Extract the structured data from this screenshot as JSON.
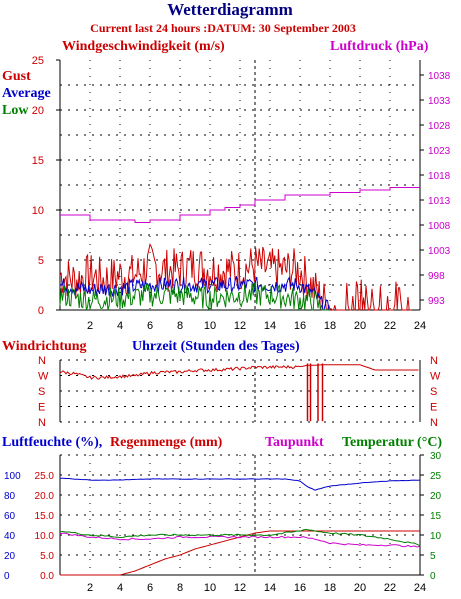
{
  "title": "Wetterdiagramm",
  "subtitle": "Current last 24 hours :DATUM: 30 September 2003",
  "labels": {
    "wind_speed": "Windgeschwindigkeit (m/s)",
    "pressure": "Luftdruck (hPa)",
    "gust": "Gust",
    "average": "Average",
    "low": "Low",
    "wind_direction": "Windrichtung",
    "hour_axis": "Uhrzeit (Stunden des Tages)",
    "humidity": "Luftfeuchte (%),",
    "rain": "Regenmenge (mm)",
    "dewpoint": "Taupunkt",
    "temperature": "Temperatur (°C)"
  },
  "colors": {
    "title": "#000080",
    "red": "#cc0000",
    "blue": "#0000cc",
    "green": "#008000",
    "magenta": "#cc00cc",
    "grid": "#000000"
  },
  "chart_data": [
    {
      "type": "line",
      "name": "wind",
      "xlabel": "Uhrzeit (Stunden des Tages)",
      "ylabel": "Windgeschwindigkeit (m/s)",
      "y2label": "Luftdruck (hPa)",
      "xlim": [
        0,
        24
      ],
      "ylim": [
        0,
        25
      ],
      "y2lim": [
        991,
        1041
      ],
      "xticks": [
        2,
        4,
        6,
        8,
        10,
        12,
        14,
        16,
        18,
        20,
        22,
        24
      ],
      "yticks": [
        0,
        5,
        10,
        15,
        20,
        25
      ],
      "y2ticks": [
        993,
        998,
        1003,
        1008,
        1013,
        1018,
        1023,
        1028,
        1033,
        1038
      ],
      "grid": true,
      "marker_hour": 13,
      "series": [
        {
          "name": "Gust",
          "color": "#cc0000",
          "x": [
            0,
            1,
            2,
            3,
            4,
            5,
            6,
            7,
            8,
            9,
            10,
            11,
            12,
            13,
            14,
            15,
            16,
            17,
            17.5,
            18,
            19,
            20,
            21,
            22,
            23
          ],
          "y": [
            3.5,
            3,
            3.5,
            3,
            3.5,
            3.5,
            4.5,
            4,
            4,
            4.5,
            4,
            4,
            4,
            4.5,
            4,
            4,
            4,
            2,
            1,
            0.5,
            1,
            1,
            1,
            1,
            0.5
          ]
        },
        {
          "name": "Average",
          "color": "#0000cc",
          "x": [
            0,
            2,
            4,
            6,
            8,
            10,
            12,
            14,
            16,
            17,
            17.5,
            18,
            24
          ],
          "y": [
            2.5,
            2,
            2.2,
            2.5,
            2.5,
            2.5,
            2.5,
            2.5,
            2.5,
            1.5,
            0.5,
            0,
            0
          ]
        },
        {
          "name": "Low",
          "color": "#008000",
          "x": [
            0,
            2,
            4,
            6,
            8,
            10,
            12,
            14,
            16,
            17,
            17.5,
            18,
            24
          ],
          "y": [
            1.5,
            1,
            1.2,
            1.5,
            1.5,
            1.2,
            1.5,
            1.5,
            1,
            0.8,
            0,
            0,
            0
          ]
        },
        {
          "name": "Luftdruck (hPa)",
          "color": "#cc00cc",
          "axis": "y2",
          "x": [
            0,
            1.5,
            2,
            4,
            5,
            6,
            8,
            10,
            11,
            12,
            13,
            14,
            15,
            16,
            18,
            20,
            22,
            24
          ],
          "y": [
            1010,
            1010,
            1009,
            1009,
            1008.5,
            1009,
            1010,
            1011,
            1011.5,
            1012,
            1013,
            1013,
            1014,
            1014,
            1014.5,
            1015,
            1015.5,
            1015.5
          ]
        }
      ]
    },
    {
      "type": "line",
      "name": "wind_direction",
      "ylabel": "Windrichtung",
      "xlim": [
        0,
        24
      ],
      "ycategories": [
        "N",
        "W",
        "S",
        "E",
        "N"
      ],
      "series": [
        {
          "name": "Windrichtung",
          "color": "#cc0000",
          "x": [
            0,
            1,
            2,
            3,
            4,
            5,
            6,
            7,
            8,
            9,
            10,
            11,
            12,
            13,
            14,
            15,
            16,
            16.5,
            17,
            17.5,
            18,
            20,
            21,
            22,
            24
          ],
          "y": [
            292,
            280,
            258,
            258,
            265,
            268,
            285,
            290,
            290,
            300,
            302,
            305,
            310,
            318,
            318,
            320,
            320,
            330,
            330,
            332,
            332,
            332,
            302,
            302,
            302
          ]
        }
      ]
    },
    {
      "type": "line",
      "name": "humidity_rain_temp",
      "y1label": "Luftfeuchte (%)",
      "y1ticks": [
        0,
        20,
        40,
        60,
        80,
        100
      ],
      "rainticks": [
        "0.0",
        "5.0",
        "10.0",
        "15.0",
        "20.0",
        "25.0"
      ],
      "y2label": "Temperatur (°C)",
      "y2ticks": [
        0,
        5,
        10,
        15,
        20,
        25,
        30
      ],
      "xlim": [
        0,
        24
      ],
      "xticks": [
        2,
        4,
        6,
        8,
        10,
        12,
        14,
        16,
        18,
        20,
        22,
        24
      ],
      "marker_hour": 13,
      "series": [
        {
          "name": "Luftfeuchte (%)",
          "color": "#0000cc",
          "x": [
            0,
            2,
            4,
            6,
            8,
            10,
            12,
            14,
            15,
            16,
            16.5,
            17,
            18,
            20,
            22,
            24
          ],
          "y": [
            97,
            95,
            95,
            96,
            96,
            96,
            96,
            96,
            96,
            94,
            88,
            85,
            89,
            92,
            94,
            95
          ]
        },
        {
          "name": "Regenmenge (mm)",
          "color": "#cc0000",
          "x": [
            0,
            4,
            4.5,
            5,
            6,
            7,
            8,
            9,
            10,
            11,
            12,
            13,
            14,
            16,
            20,
            24
          ],
          "y": [
            0,
            0,
            0.5,
            1,
            2.5,
            4,
            5,
            6.5,
            7.5,
            8.5,
            9.5,
            10.5,
            11,
            11,
            11,
            11
          ]
        },
        {
          "name": "Taupunkt",
          "color": "#cc00cc",
          "x": [
            0,
            2,
            4,
            6,
            8,
            10,
            12,
            14,
            16,
            17,
            18,
            20,
            22,
            24
          ],
          "y": [
            10.5,
            9.5,
            9,
            9,
            9.5,
            9.5,
            9.5,
            9.5,
            9.5,
            9,
            8,
            7.5,
            7.5,
            7
          ]
        },
        {
          "name": "Temperatur (°C)",
          "color": "#008000",
          "x": [
            0,
            2,
            4,
            6,
            8,
            10,
            12,
            14,
            16,
            16.5,
            17,
            18,
            20,
            22,
            24
          ],
          "y": [
            11,
            10,
            9.5,
            10,
            10,
            10,
            10,
            10,
            11,
            11.5,
            11,
            10.5,
            10,
            9,
            7.5
          ]
        }
      ]
    }
  ]
}
